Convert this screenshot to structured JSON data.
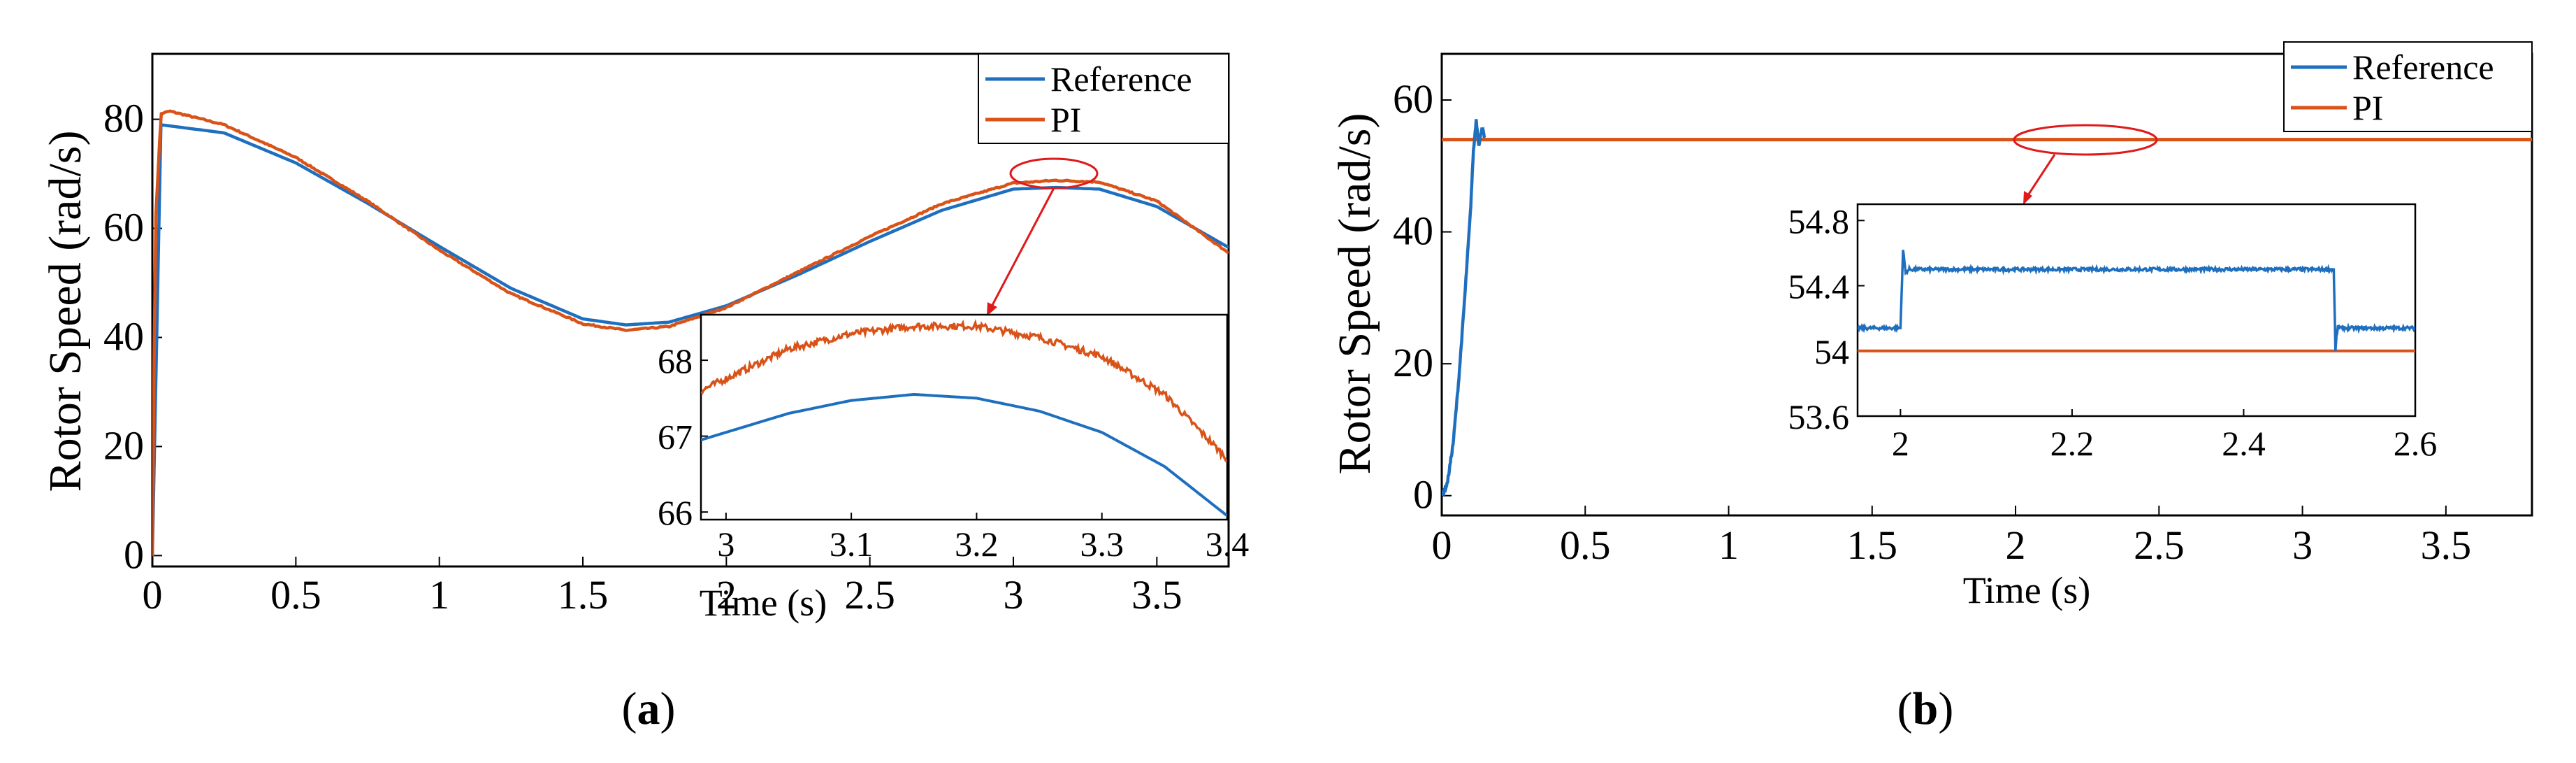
{
  "figure": {
    "panel_labels": [
      {
        "open": "(",
        "letter": "a",
        "close": ")"
      },
      {
        "open": "(",
        "letter": "b",
        "close": ")"
      }
    ]
  },
  "chart_data": [
    {
      "type": "line",
      "panel": "a",
      "title": "",
      "xlabel": "Time (s)",
      "ylabel": "Rotor Speed (rad/s)",
      "xlim": [
        0,
        3.75
      ],
      "ylim": [
        -2,
        92
      ],
      "xticks": [
        0,
        0.5,
        1,
        1.5,
        2,
        2.5,
        3,
        3.5
      ],
      "xtick_labels": [
        "0",
        "0.5",
        "1",
        "1.5",
        "2",
        "2.5",
        "3",
        "3.5"
      ],
      "yticks": [
        0,
        20,
        40,
        60,
        80
      ],
      "ytick_labels": [
        "0",
        "20",
        "40",
        "60",
        "80"
      ],
      "legend": [
        "Reference",
        "PI"
      ],
      "legend_position": "top-right",
      "colors": {
        "Reference": "#1f6fbf",
        "PI": "#d95319",
        "annotation": "#e0191b"
      },
      "series": [
        {
          "name": "Reference",
          "x": [
            0,
            0.03,
            0.25,
            0.5,
            0.75,
            1.0,
            1.25,
            1.5,
            1.65,
            1.8,
            2.0,
            2.25,
            2.5,
            2.75,
            3.0,
            3.15,
            3.3,
            3.5,
            3.75
          ],
          "y": [
            0,
            79,
            77.5,
            72,
            64.6,
            56.7,
            49,
            43.4,
            42.3,
            42.8,
            45.8,
            51.5,
            57.6,
            63.3,
            67.2,
            67.5,
            67.2,
            64,
            56.5
          ]
        },
        {
          "name": "PI",
          "x": [
            0,
            0.01,
            0.03,
            0.06,
            0.25,
            0.5,
            0.75,
            1.0,
            1.25,
            1.5,
            1.65,
            1.8,
            2.0,
            2.25,
            2.5,
            2.75,
            3.0,
            3.15,
            3.3,
            3.5,
            3.75
          ],
          "y": [
            0,
            60,
            81,
            81.5,
            79,
            73,
            65,
            56,
            48,
            42.5,
            41.3,
            42,
            45.5,
            52,
            58.5,
            64.5,
            68.3,
            68.8,
            68.5,
            65,
            55.5
          ]
        }
      ],
      "inset": {
        "xlim": [
          2.98,
          3.4
        ],
        "ylim": [
          65.9,
          68.6
        ],
        "xticks": [
          3,
          3.1,
          3.2,
          3.3,
          3.4
        ],
        "xtick_labels": [
          "3",
          "3.1",
          "3.2",
          "3.3",
          "3.4"
        ],
        "yticks": [
          66,
          67,
          68
        ],
        "ytick_labels": [
          "66",
          "67",
          "68"
        ],
        "reference": {
          "x": [
            2.98,
            3.05,
            3.1,
            3.15,
            3.2,
            3.25,
            3.3,
            3.35,
            3.4
          ],
          "y": [
            66.95,
            67.3,
            67.47,
            67.55,
            67.5,
            67.33,
            67.05,
            66.6,
            65.95
          ]
        },
        "pi": {
          "x": [
            2.98,
            3.05,
            3.1,
            3.15,
            3.2,
            3.25,
            3.3,
            3.35,
            3.4
          ],
          "y": [
            67.6,
            68.15,
            68.35,
            68.45,
            68.45,
            68.3,
            68.05,
            67.55,
            66.7
          ]
        },
        "zoom_ellipse": {
          "x_center": 3.1,
          "y_center": 68,
          "x_halfwidth": 0.13,
          "y_halfwidth": 2
        }
      }
    },
    {
      "type": "line",
      "panel": "b",
      "title": "",
      "xlabel": "Time (s)",
      "ylabel": "Rotor Speed (rad/s)",
      "xlim": [
        0,
        3.8
      ],
      "ylim": [
        -3,
        67
      ],
      "xticks": [
        0,
        0.5,
        1,
        1.5,
        2,
        2.5,
        3,
        3.5
      ],
      "xtick_labels": [
        "0",
        "0.5",
        "1",
        "1.5",
        "2",
        "2.5",
        "3",
        "3.5"
      ],
      "yticks": [
        0,
        20,
        40,
        60
      ],
      "ytick_labels": [
        "0",
        "20",
        "40",
        "60"
      ],
      "legend": [
        "Reference",
        "PI"
      ],
      "legend_position": "top-right",
      "colors": {
        "Reference": "#1f6fbf",
        "PI": "#d95319",
        "annotation": "#e0191b"
      },
      "series": [
        {
          "name": "Reference",
          "x": [
            0,
            0.02,
            0.04,
            0.06,
            0.08,
            0.1,
            0.11,
            0.12,
            0.13,
            0.14,
            0.15
          ],
          "y": [
            0,
            2,
            8,
            18,
            30,
            43,
            52,
            57,
            53,
            56,
            54
          ]
        },
        {
          "name": "PI",
          "x": [
            0,
            3.8
          ],
          "y": [
            54,
            54
          ]
        }
      ],
      "inset": {
        "xlim": [
          1.95,
          2.6
        ],
        "ylim": [
          53.6,
          54.9
        ],
        "xticks": [
          2,
          2.2,
          2.4,
          2.6
        ],
        "xtick_labels": [
          "2",
          "2.2",
          "2.4",
          "2.6"
        ],
        "yticks": [
          53.6,
          54,
          54.4,
          54.8
        ],
        "ytick_labels": [
          "53.6",
          "54",
          "54.4",
          "54.8"
        ],
        "reference": {
          "x": [
            1.95,
            1.985,
            2.0,
            2.003,
            2.006,
            2.01,
            2.1,
            2.2,
            2.3,
            2.4,
            2.505,
            2.507,
            2.508,
            2.51,
            2.515,
            2.6
          ],
          "y": [
            54.14,
            54.14,
            54.14,
            54.62,
            54.48,
            54.5,
            54.5,
            54.5,
            54.5,
            54.5,
            54.5,
            54.0,
            54.08,
            54.15,
            54.14,
            54.14
          ]
        },
        "pi": {
          "x": [
            1.95,
            2.6
          ],
          "y": [
            54,
            54
          ]
        },
        "zoom_ellipse": {
          "x_center": 1.95,
          "y_center": 54.8,
          "x_halfwidth": 0.16,
          "y_halfwidth": 2.2
        }
      }
    }
  ]
}
